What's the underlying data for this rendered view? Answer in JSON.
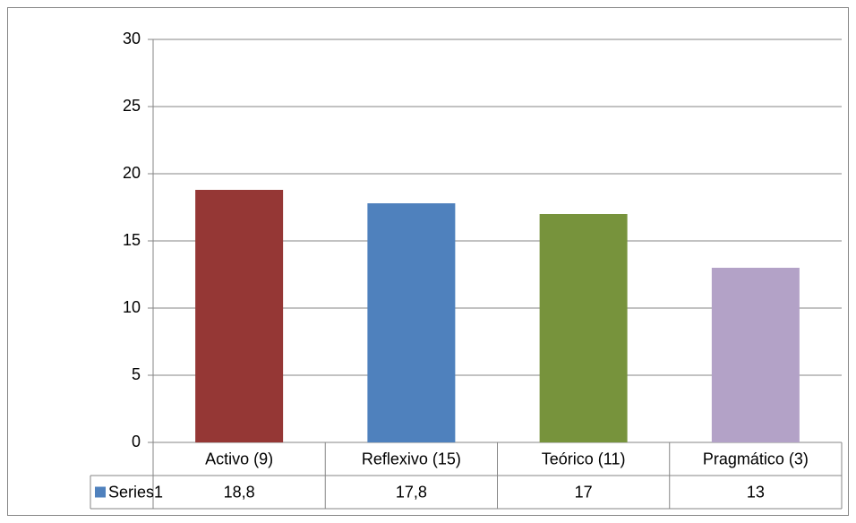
{
  "chart_data": {
    "type": "bar",
    "categories": [
      "Activo (9)",
      "Reflexivo (15)",
      "Teórico (11)",
      "Pragmático (3)"
    ],
    "series": [
      {
        "name": "Series1",
        "color": "#4f81bd",
        "colors": [
          "#953735",
          "#4f81bd",
          "#77933c",
          "#b3a2c7"
        ],
        "values": [
          18.8,
          17.8,
          17,
          13
        ],
        "value_labels": [
          "18,8",
          "17,8",
          "17",
          "13"
        ]
      }
    ],
    "ylim": [
      0,
      30
    ],
    "yticks": [
      0,
      5,
      10,
      15,
      20,
      25,
      30
    ],
    "grid": true
  }
}
